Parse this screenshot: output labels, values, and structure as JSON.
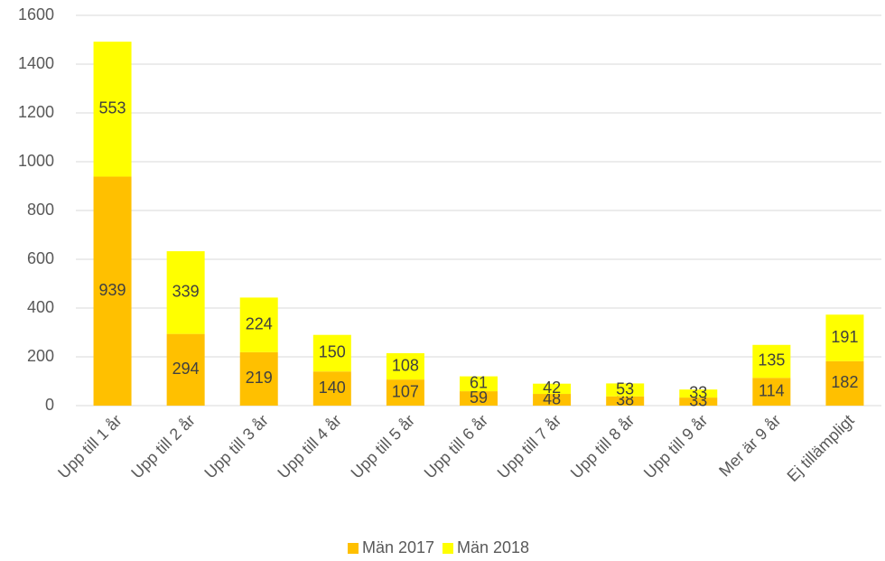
{
  "chart_data": {
    "type": "stacked_bar",
    "categories": [
      "Upp till 1 år",
      "Upp till 2 år",
      "Upp till 3 år",
      "Upp till 4 år",
      "Upp till 5 år",
      "Upp till 6 år",
      "Upp till 7 år",
      "Upp till 8 år",
      "Upp till 9 år",
      "Mer är 9 år",
      "Ej tillämpligt"
    ],
    "series": [
      {
        "name": "Män 2017",
        "color": "#FFC000",
        "values": [
          939,
          294,
          219,
          140,
          107,
          59,
          48,
          38,
          33,
          114,
          182
        ]
      },
      {
        "name": "Män 2018",
        "color": "#FFFF00",
        "values": [
          553,
          339,
          224,
          150,
          108,
          61,
          42,
          53,
          33,
          135,
          191
        ]
      }
    ],
    "ylim": [
      0,
      1600
    ],
    "yticks": [
      0,
      200,
      400,
      600,
      800,
      1000,
      1200,
      1400,
      1600
    ],
    "grid": true,
    "legend": "bottom"
  }
}
